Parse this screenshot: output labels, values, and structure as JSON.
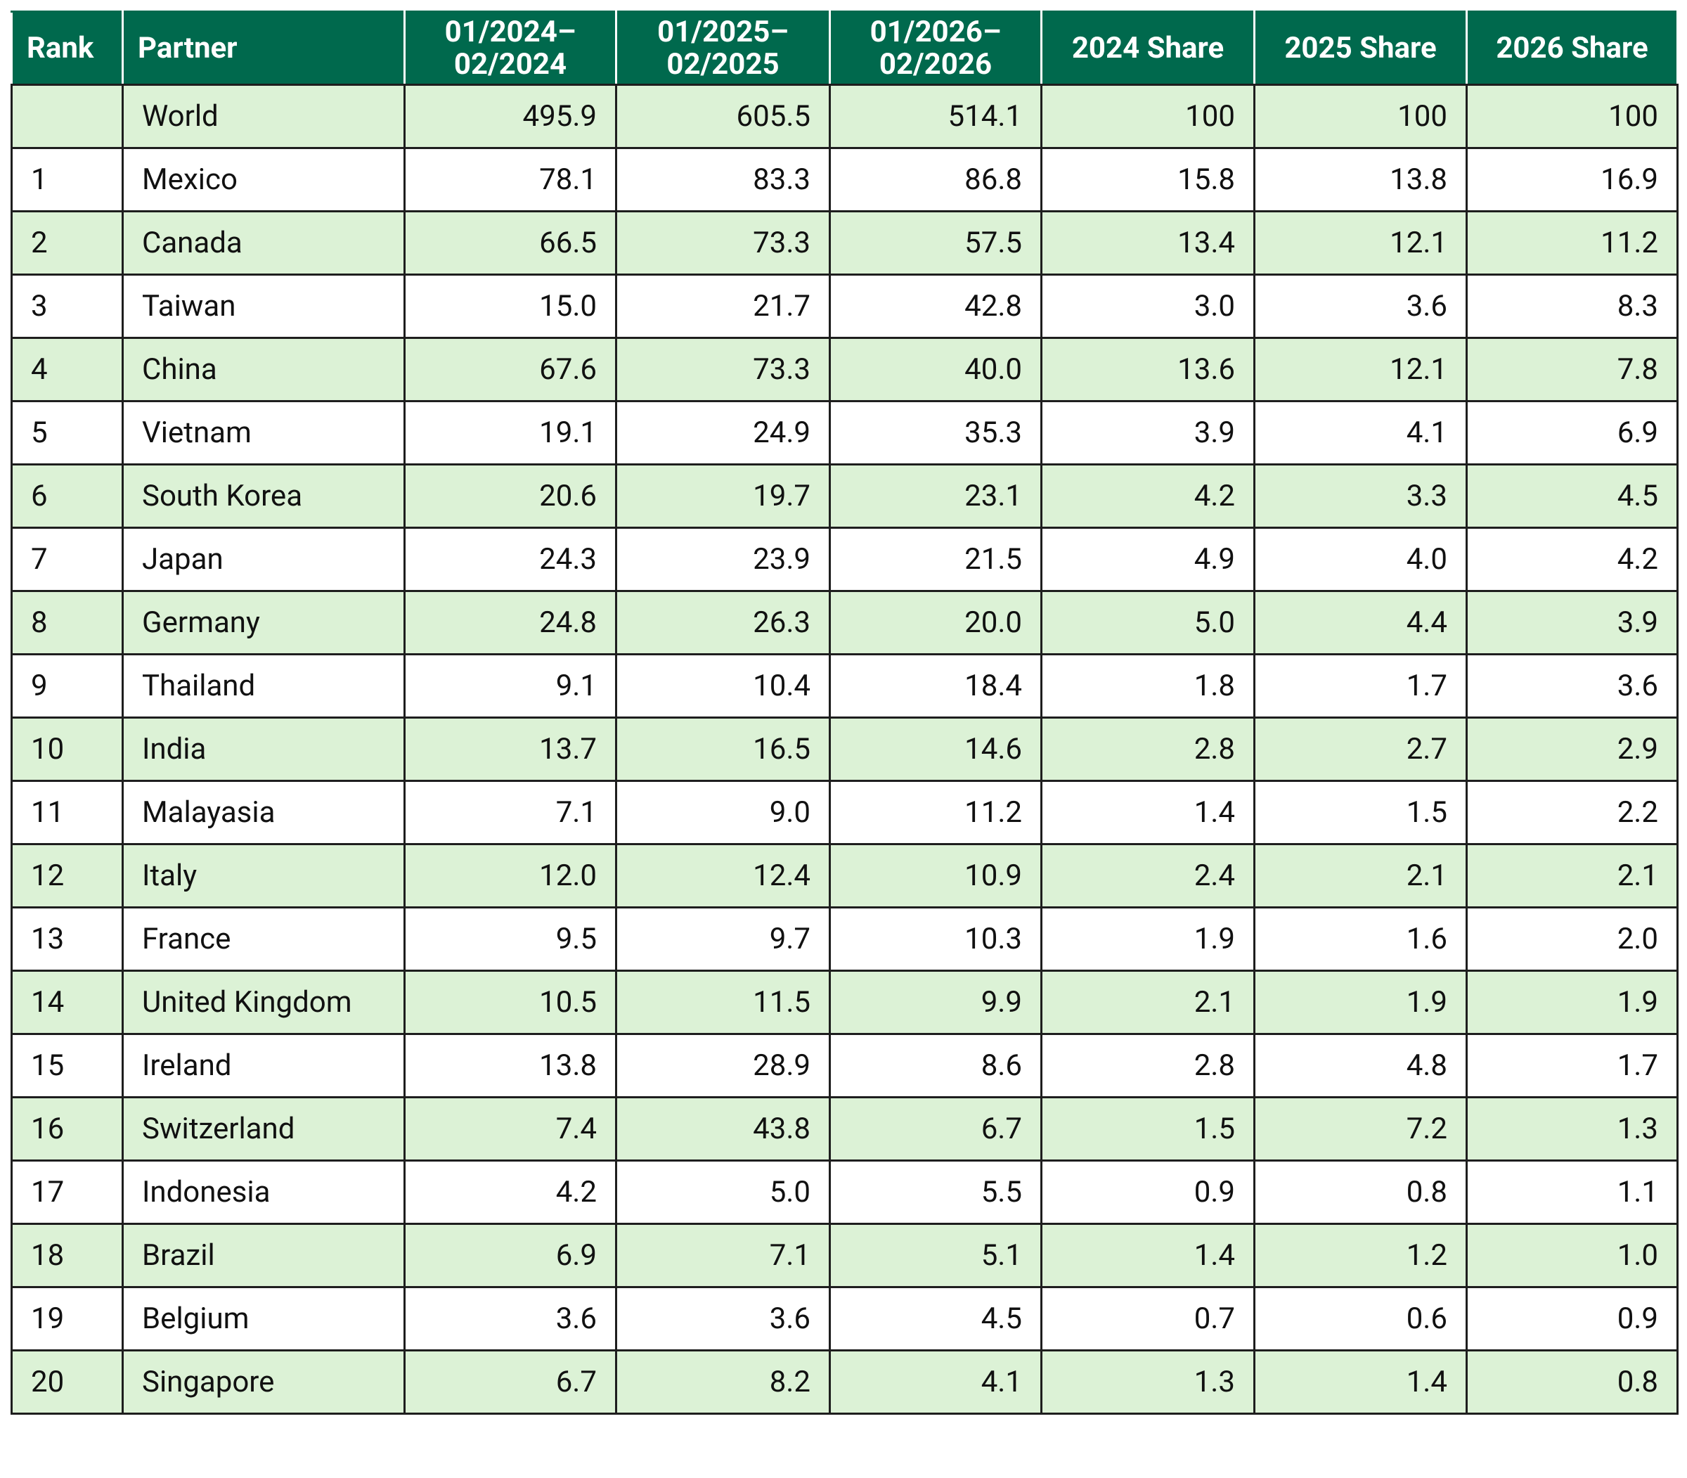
{
  "table": {
    "header": [
      "Rank",
      "Partner",
      "01/2024–02/2024",
      "01/2025–02/2025",
      "01/2026–02/2026",
      "2024 Share",
      "2025 Share",
      "2026 Share"
    ],
    "rows": [
      [
        null,
        "World",
        "495.9",
        "605.5",
        "514.1",
        "100",
        "100",
        "100"
      ],
      [
        "1",
        "Mexico",
        "78.1",
        "83.3",
        "86.8",
        "15.8",
        "13.8",
        "16.9"
      ],
      [
        "2",
        "Canada",
        "66.5",
        "73.3",
        "57.5",
        "13.4",
        "12.1",
        "11.2"
      ],
      [
        "3",
        "Taiwan",
        "15.0",
        "21.7",
        "42.8",
        "3.0",
        "3.6",
        "8.3"
      ],
      [
        "4",
        "China",
        "67.6",
        "73.3",
        "40.0",
        "13.6",
        "12.1",
        "7.8"
      ],
      [
        "5",
        "Vietnam",
        "19.1",
        "24.9",
        "35.3",
        "3.9",
        "4.1",
        "6.9"
      ],
      [
        "6",
        "South Korea",
        "20.6",
        "19.7",
        "23.1",
        "4.2",
        "3.3",
        "4.5"
      ],
      [
        "7",
        "Japan",
        "24.3",
        "23.9",
        "21.5",
        "4.9",
        "4.0",
        "4.2"
      ],
      [
        "8",
        "Germany",
        "24.8",
        "26.3",
        "20.0",
        "5.0",
        "4.4",
        "3.9"
      ],
      [
        "9",
        "Thailand",
        "9.1",
        "10.4",
        "18.4",
        "1.8",
        "1.7",
        "3.6"
      ],
      [
        "10",
        "India",
        "13.7",
        "16.5",
        "14.6",
        "2.8",
        "2.7",
        "2.9"
      ],
      [
        "11",
        "Malayasia",
        "7.1",
        "9.0",
        "11.2",
        "1.4",
        "1.5",
        "2.2"
      ],
      [
        "12",
        "Italy",
        "12.0",
        "12.4",
        "10.9",
        "2.4",
        "2.1",
        "2.1"
      ],
      [
        "13",
        "France",
        "9.5",
        "9.7",
        "10.3",
        "1.9",
        "1.6",
        "2.0"
      ],
      [
        "14",
        "United Kingdom",
        "10.5",
        "11.5",
        "9.9",
        "2.1",
        "1.9",
        "1.9"
      ],
      [
        "15",
        "Ireland",
        "13.8",
        "28.9",
        "8.6",
        "2.8",
        "4.8",
        "1.7"
      ],
      [
        "16",
        "Switzerland",
        "7.4",
        "43.8",
        "6.7",
        "1.5",
        "7.2",
        "1.3"
      ],
      [
        "17",
        "Indonesia",
        "4.2",
        "5.0",
        "5.5",
        "0.9",
        "0.8",
        "1.1"
      ],
      [
        "18",
        "Brazil",
        "6.9",
        "7.1",
        "5.1",
        "1.4",
        "1.2",
        "1.0"
      ],
      [
        "19",
        "Belgium",
        "3.6",
        "3.6",
        "4.5",
        "0.7",
        "0.6",
        "0.9"
      ],
      [
        "20",
        "Singapore",
        "6.7",
        "8.2",
        "4.1",
        "1.3",
        "1.4",
        "0.8"
      ]
    ]
  }
}
